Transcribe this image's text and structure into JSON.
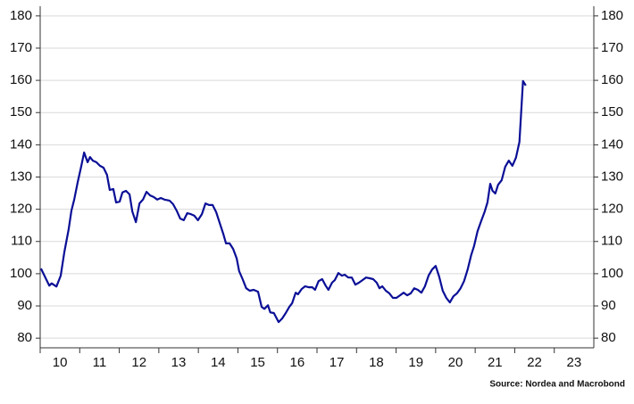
{
  "chart_data": {
    "type": "line",
    "source": "Source: Nordea and Macrobond",
    "x": [
      2010.02,
      2010.23,
      2010.29,
      2010.41,
      2010.52,
      2010.61,
      2010.72,
      2010.79,
      2010.86,
      2010.95,
      2011.04,
      2011.11,
      2011.2,
      2011.26,
      2011.33,
      2011.42,
      2011.51,
      2011.6,
      2011.69,
      2011.76,
      2011.85,
      2011.92,
      2012.01,
      2012.08,
      2012.17,
      2012.26,
      2012.33,
      2012.42,
      2012.51,
      2012.6,
      2012.69,
      2012.78,
      2012.87,
      2012.96,
      2013.05,
      2013.14,
      2013.27,
      2013.36,
      2013.45,
      2013.54,
      2013.63,
      2013.72,
      2013.81,
      2013.9,
      2013.99,
      2014.09,
      2014.18,
      2014.27,
      2014.36,
      2014.45,
      2014.54,
      2014.63,
      2014.7,
      2014.79,
      2014.88,
      2014.97,
      2015.03,
      2015.12,
      2015.21,
      2015.3,
      2015.4,
      2015.51,
      2015.6,
      2015.67,
      2015.76,
      2015.82,
      2015.91,
      2016.03,
      2016.12,
      2016.21,
      2016.3,
      2016.37,
      2016.46,
      2016.52,
      2016.61,
      2016.7,
      2016.79,
      2016.88,
      2016.95,
      2017.04,
      2017.13,
      2017.22,
      2017.29,
      2017.38,
      2017.45,
      2017.54,
      2017.63,
      2017.7,
      2017.79,
      2017.88,
      2017.97,
      2018.06,
      2018.15,
      2018.24,
      2018.33,
      2018.42,
      2018.51,
      2018.58,
      2018.65,
      2018.74,
      2018.83,
      2018.92,
      2019.01,
      2019.1,
      2019.19,
      2019.28,
      2019.37,
      2019.46,
      2019.55,
      2019.64,
      2019.73,
      2019.82,
      2019.91,
      2020.0,
      2020.09,
      2020.18,
      2020.27,
      2020.36,
      2020.45,
      2020.54,
      2020.63,
      2020.72,
      2020.81,
      2020.9,
      2020.97,
      2021.06,
      2021.15,
      2021.24,
      2021.31,
      2021.38,
      2021.44,
      2021.51,
      2021.58,
      2021.67,
      2021.76,
      2021.85,
      2021.94,
      2022.03,
      2022.12,
      2022.21,
      2022.28
    ],
    "series": [
      {
        "color": "#0a0f96",
        "values": [
          101.6,
          96.3,
          97,
          96,
          99.4,
          106.6,
          113.8,
          119.6,
          123,
          128.5,
          133.5,
          137.6,
          134.6,
          136.2,
          135.1,
          134.6,
          133.5,
          132.9,
          130.7,
          126,
          126.3,
          122.1,
          122.4,
          125.2,
          125.7,
          124.6,
          119.3,
          116,
          121.8,
          123,
          125.4,
          124.3,
          123.8,
          123,
          123.5,
          123,
          122.7,
          121.6,
          119.6,
          117.1,
          116.6,
          118.8,
          118.5,
          118,
          116.6,
          118.5,
          121.8,
          121.3,
          121.3,
          119.1,
          115.7,
          112.4,
          109.4,
          109.4,
          107.7,
          104.7,
          100.8,
          98.3,
          95.5,
          94.7,
          95,
          94.4,
          89.7,
          89.1,
          90.2,
          88,
          87.8,
          85,
          86.1,
          87.8,
          89.7,
          90.8,
          94.1,
          93.6,
          95.2,
          96.1,
          95.8,
          95.8,
          95,
          97.7,
          98.3,
          96.3,
          95,
          97.2,
          98,
          100.2,
          99.4,
          99.7,
          98.8,
          98.8,
          96.6,
          97.2,
          98,
          98.8,
          98.6,
          98.3,
          97.2,
          95.5,
          96.1,
          94.7,
          93.9,
          92.5,
          92.5,
          93.3,
          94.1,
          93.3,
          93.9,
          95.5,
          95,
          94.1,
          96.1,
          99.4,
          101.3,
          102.4,
          99.1,
          94.7,
          92.5,
          91.1,
          93,
          93.9,
          95.5,
          97.7,
          101.3,
          105.8,
          108.5,
          113.2,
          116.3,
          119.3,
          122.1,
          127.9,
          125.7,
          124.9,
          127.6,
          129,
          133.2,
          135.1,
          133.5,
          136,
          140.9,
          159.8,
          158.4
        ]
      }
    ],
    "xlim": [
      2010,
      2024
    ],
    "xticks": [
      {
        "value": 2010.5,
        "label": "10"
      },
      {
        "value": 2011.5,
        "label": "11"
      },
      {
        "value": 2012.5,
        "label": "12"
      },
      {
        "value": 2013.5,
        "label": "13"
      },
      {
        "value": 2014.5,
        "label": "14"
      },
      {
        "value": 2015.5,
        "label": "15"
      },
      {
        "value": 2016.5,
        "label": "16"
      },
      {
        "value": 2017.5,
        "label": "17"
      },
      {
        "value": 2018.5,
        "label": "18"
      },
      {
        "value": 2019.5,
        "label": "19"
      },
      {
        "value": 2020.5,
        "label": "20"
      },
      {
        "value": 2021.5,
        "label": "21"
      },
      {
        "value": 2022.5,
        "label": "22"
      },
      {
        "value": 2023.5,
        "label": "23"
      }
    ],
    "ylim": [
      77,
      183
    ],
    "yticks": [
      80,
      90,
      100,
      110,
      120,
      130,
      140,
      150,
      160,
      170,
      180
    ],
    "y2lim": [
      77,
      183
    ],
    "y2ticks": [
      80,
      90,
      100,
      110,
      120,
      130,
      140,
      150,
      160,
      170,
      180
    ],
    "grid": true
  }
}
